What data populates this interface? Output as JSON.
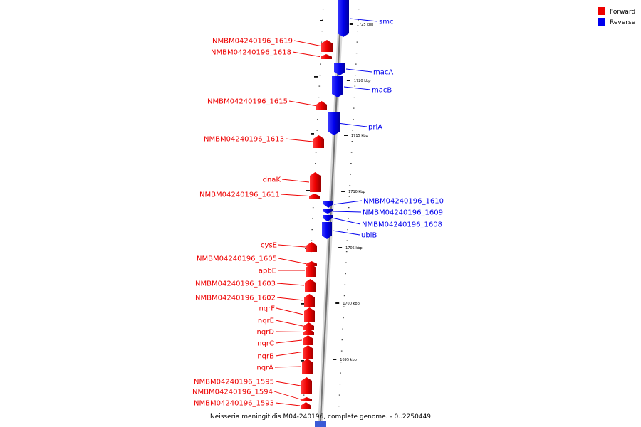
{
  "legend": [
    {
      "label": "Forward",
      "color": "#ee0000"
    },
    {
      "label": "Reverse",
      "color": "#0000ee"
    }
  ],
  "caption": "Neisseria meningitidis M04-240196, complete genome. - 0..2250449",
  "scale_ticks": [
    "1725 kbp",
    "1720 kbp",
    "1715 kbp",
    "1710 kbp",
    "1705 kbp",
    "1700 kbp",
    "1695 kbp"
  ],
  "genes": [
    {
      "name": "smc",
      "strand": "reverse"
    },
    {
      "name": "NMBM04240196_1619",
      "strand": "forward"
    },
    {
      "name": "NMBM04240196_1618",
      "strand": "forward"
    },
    {
      "name": "macA",
      "strand": "reverse"
    },
    {
      "name": "macB",
      "strand": "reverse"
    },
    {
      "name": "NMBM04240196_1615",
      "strand": "forward"
    },
    {
      "name": "priA",
      "strand": "reverse"
    },
    {
      "name": "NMBM04240196_1613",
      "strand": "forward"
    },
    {
      "name": "dnaK",
      "strand": "forward"
    },
    {
      "name": "NMBM04240196_1611",
      "strand": "forward"
    },
    {
      "name": "NMBM04240196_1610",
      "strand": "reverse"
    },
    {
      "name": "NMBM04240196_1609",
      "strand": "reverse"
    },
    {
      "name": "NMBM04240196_1608",
      "strand": "reverse"
    },
    {
      "name": "ubiB",
      "strand": "reverse"
    },
    {
      "name": "cysE",
      "strand": "forward"
    },
    {
      "name": "NMBM04240196_1605",
      "strand": "forward"
    },
    {
      "name": "apbE",
      "strand": "forward"
    },
    {
      "name": "NMBM04240196_1603",
      "strand": "forward"
    },
    {
      "name": "NMBM04240196_1602",
      "strand": "forward"
    },
    {
      "name": "nqrF",
      "strand": "forward"
    },
    {
      "name": "nqrE",
      "strand": "forward"
    },
    {
      "name": "nqrD",
      "strand": "forward"
    },
    {
      "name": "nqrC",
      "strand": "forward"
    },
    {
      "name": "nqrB",
      "strand": "forward"
    },
    {
      "name": "nqrA",
      "strand": "forward"
    },
    {
      "name": "NMBM04240196_1595",
      "strand": "forward"
    },
    {
      "name": "NMBM04240196_1594",
      "strand": "forward"
    },
    {
      "name": "NMBM04240196_1593",
      "strand": "forward"
    }
  ]
}
